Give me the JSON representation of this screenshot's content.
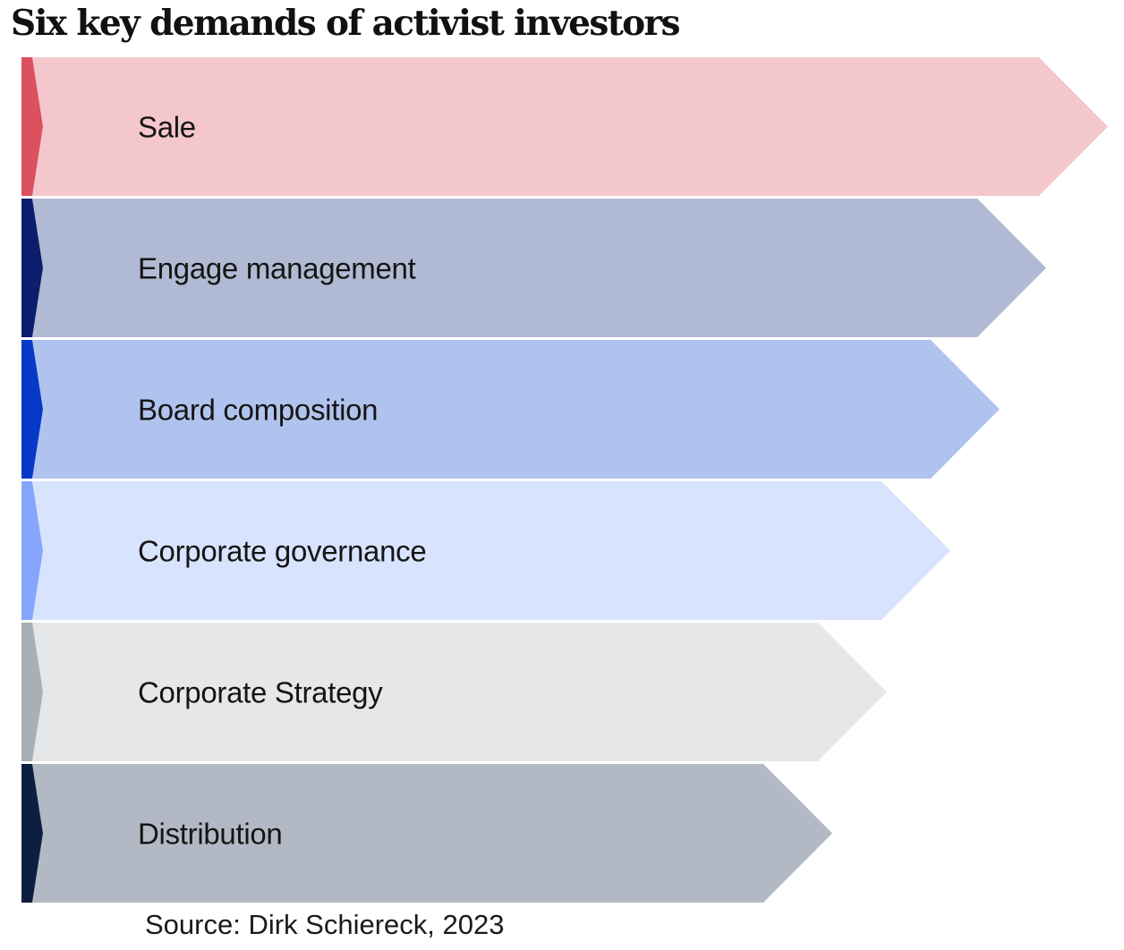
{
  "title": "Six key demands of activist investors",
  "source": "Source: Dirk Schiereck, 2023",
  "items": [
    {
      "label": "Sale",
      "fill": "#f4c7cd",
      "accent": "#dc5060"
    },
    {
      "label": "Engage management",
      "fill": "#b1bad4",
      "accent": "#0c1f6e"
    },
    {
      "label": "Board composition",
      "fill": "#b0c3ee",
      "accent": "#0639c8"
    },
    {
      "label": "Corporate governance",
      "fill": "#d8e3fd",
      "accent": "#86a5fb"
    },
    {
      "label": "Corporate Strategy",
      "fill": "#e6e7e9",
      "accent": "#a8b0b5"
    },
    {
      "label": "Distribution",
      "fill": "#b3b9c4",
      "accent": "#0c1f40"
    }
  ]
}
